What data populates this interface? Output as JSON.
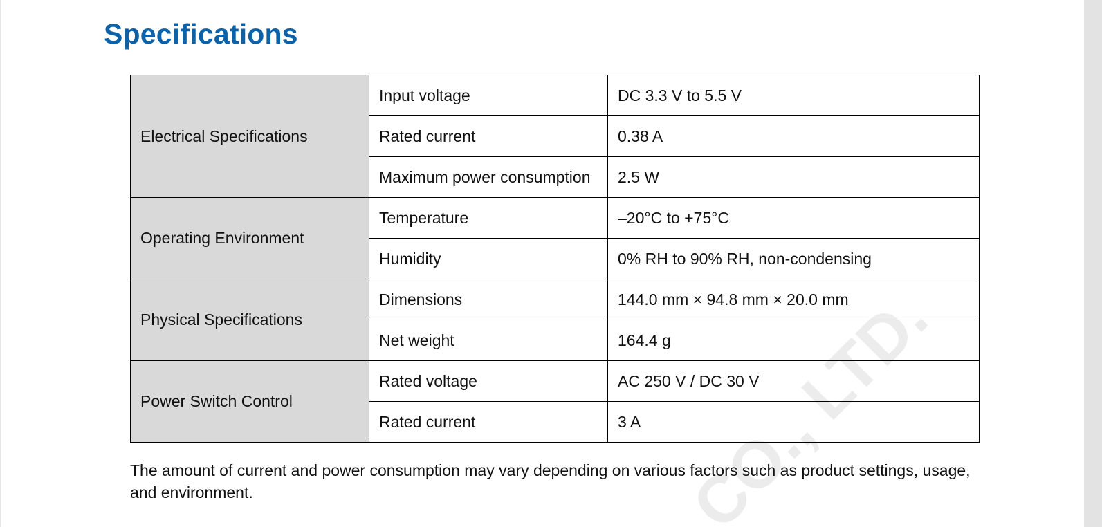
{
  "title": "Specifications",
  "sections": [
    {
      "category": "Electrical Specifications",
      "rows": [
        {
          "param": "Input voltage",
          "value": "DC 3.3 V to 5.5 V"
        },
        {
          "param": "Rated current",
          "value": "0.38 A"
        },
        {
          "param": "Maximum power consumption",
          "value": "2.5 W"
        }
      ]
    },
    {
      "category": "Operating Environment",
      "rows": [
        {
          "param": "Temperature",
          "value": "–20°C to +75°C"
        },
        {
          "param": "Humidity",
          "value": "0% RH to 90% RH, non-condensing"
        }
      ]
    },
    {
      "category": "Physical Specifications",
      "rows": [
        {
          "param": "Dimensions",
          "value": "144.0 mm × 94.8 mm × 20.0 mm"
        },
        {
          "param": "Net weight",
          "value": "164.4 g"
        }
      ]
    },
    {
      "category": "Power Switch Control",
      "rows": [
        {
          "param": "Rated voltage",
          "value": "AC 250 V / DC 30 V"
        },
        {
          "param": "Rated current",
          "value": "3 A"
        }
      ]
    }
  ],
  "note": "The amount of current and power consumption may vary depending on various factors such as product settings, usage, and environment.",
  "watermark": "CO., LTD.",
  "colors": {
    "title": "#0c62a8",
    "category_bg": "#d9d9d9",
    "watermark": "#ececec"
  }
}
